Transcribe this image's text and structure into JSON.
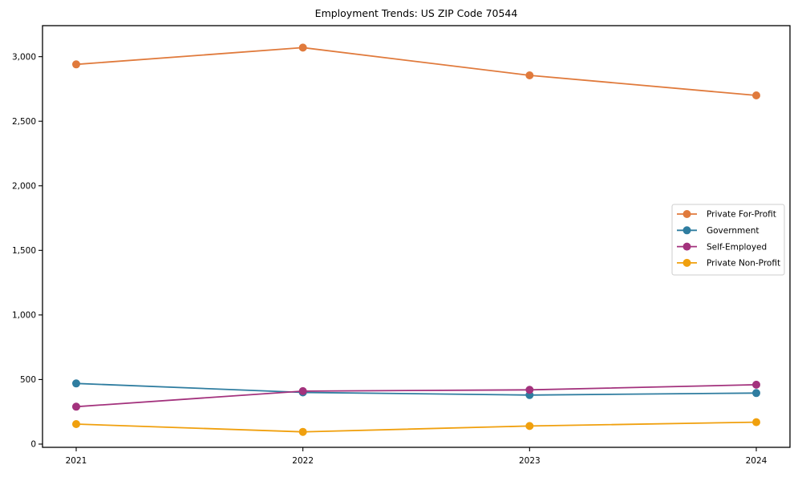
{
  "chart_data": {
    "type": "line",
    "title": "Employment Trends: US ZIP Code 70544",
    "xlabel": "",
    "ylabel": "",
    "categories": [
      "2021",
      "2022",
      "2023",
      "2024"
    ],
    "series": [
      {
        "name": "Private For-Profit",
        "color": "#E07A3C",
        "values": [
          2940,
          3070,
          2855,
          2700
        ]
      },
      {
        "name": "Government",
        "color": "#2F7DA0",
        "values": [
          470,
          400,
          380,
          395
        ]
      },
      {
        "name": "Self-Employed",
        "color": "#A3327D",
        "values": [
          290,
          410,
          420,
          460
        ]
      },
      {
        "name": "Private Non-Profit",
        "color": "#F0A00E",
        "values": [
          155,
          95,
          140,
          170
        ]
      }
    ],
    "yticks": {
      "values": [
        0,
        500,
        1000,
        1500,
        2000,
        2500,
        3000
      ],
      "labels": [
        "0",
        "500",
        "1,000",
        "1,500",
        "2,000",
        "2,500",
        "3,000"
      ]
    },
    "ylim": [
      -25,
      3240
    ],
    "grid": false,
    "marker": "circle",
    "legend": {
      "position": "center right",
      "border_color": "#cccccc",
      "background": "#ffffff"
    }
  }
}
